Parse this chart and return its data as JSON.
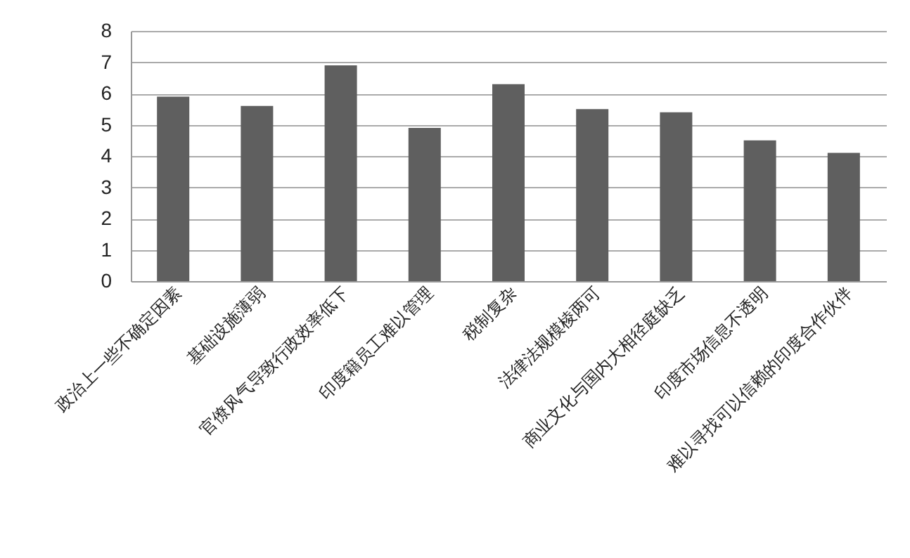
{
  "chart_data": {
    "type": "bar",
    "categories": [
      "政治上一些不确定因素",
      "基础设施薄弱",
      "官僚风气导致行政效率低下",
      "印度籍员工难以管理",
      "税制复杂",
      "法律法规模棱两可",
      "商业文化与国内大相径庭缺乏",
      "印度市场信息不透明",
      "难以寻找可以信赖的印度合作伙伴"
    ],
    "values": [
      5.9,
      5.6,
      6.9,
      4.9,
      6.3,
      5.5,
      5.4,
      4.5,
      4.1
    ],
    "color": "#5f5f5f",
    "ylim": [
      0,
      8
    ],
    "yticks": [
      0,
      1,
      2,
      3,
      4,
      5,
      6,
      7,
      8
    ],
    "grid": "y"
  }
}
